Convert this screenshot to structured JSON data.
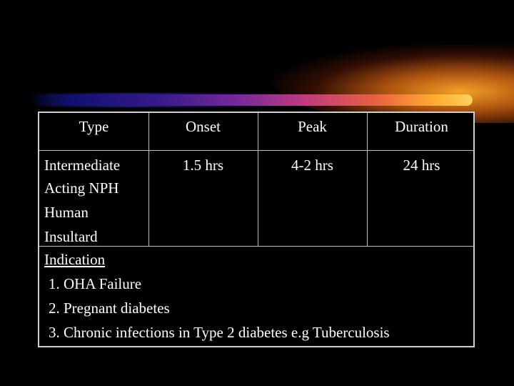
{
  "table": {
    "headers": [
      "Type",
      "Onset",
      "Peak",
      "Duration"
    ],
    "row": {
      "type_lines": [
        "Intermediate",
        "Acting NPH",
        "Human",
        "Insultard"
      ],
      "onset": "1.5 hrs",
      "peak": "4-2 hrs",
      "duration": "24 hrs"
    }
  },
  "indication": {
    "title": "Indication",
    "items": [
      "1. OHA Failure",
      "2. Pregnant diabetes",
      "3. Chronic infections in Type 2 diabetes e.g Tuberculosis"
    ]
  },
  "colors": {
    "background": "#000000",
    "text": "#ffffff",
    "border": "#cfcfcf",
    "accent_orange": "#ffae30",
    "accent_purple": "#7a2a9a"
  }
}
